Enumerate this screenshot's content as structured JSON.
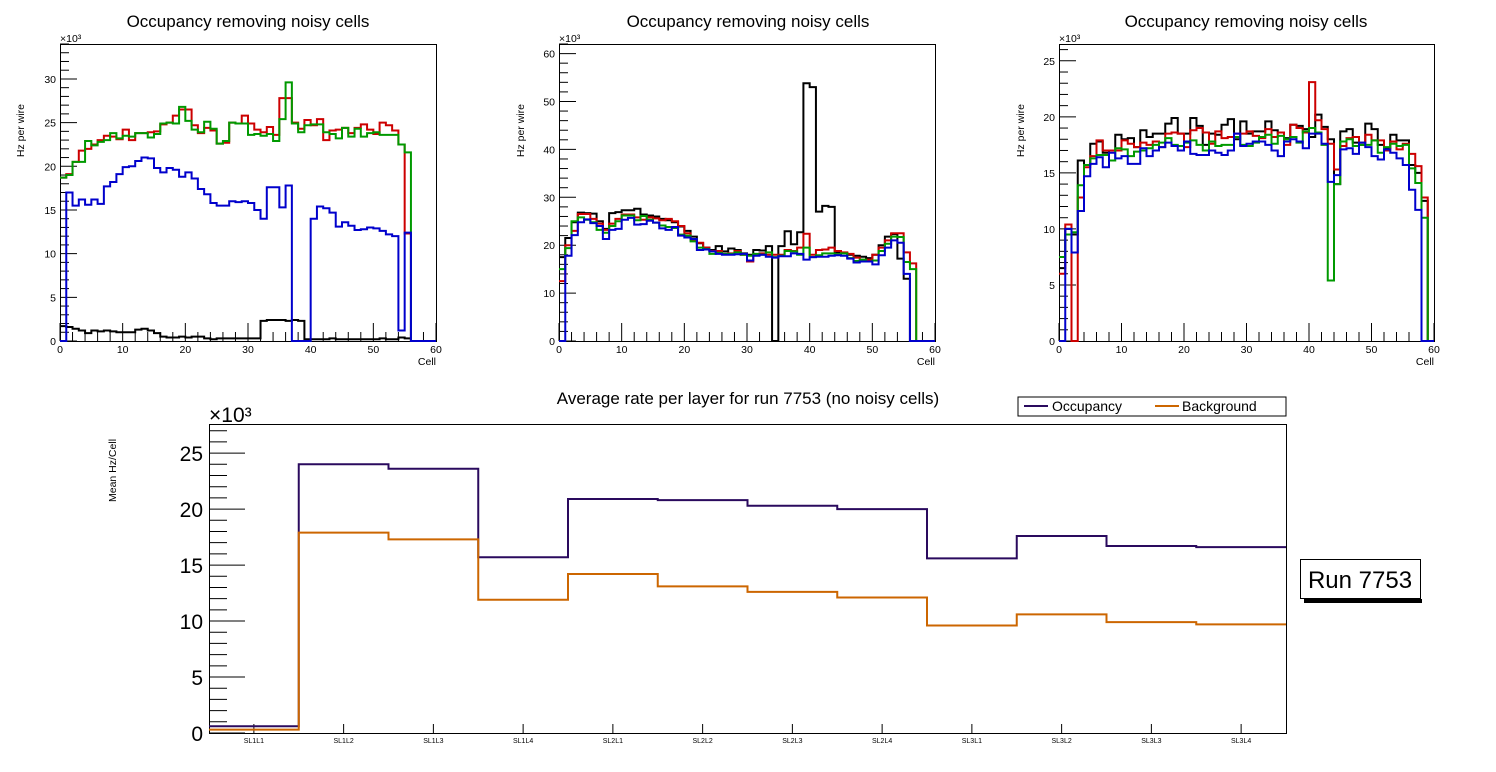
{
  "chart_data": [
    {
      "type": "line",
      "style": "step-histogram",
      "title": "Occupancy removing noisy cells",
      "xlabel": "Cell",
      "ylabel": "Hz per wire",
      "y_multiplier": "×10³",
      "xlim": [
        0,
        60
      ],
      "ylim": [
        0,
        34
      ],
      "xticks": [
        "0",
        "10",
        "20",
        "30",
        "40",
        "50",
        "60"
      ],
      "yticks": [
        "0",
        "5",
        "10",
        "15",
        "20",
        "25",
        "30"
      ],
      "ytick_values": [
        0,
        5,
        10,
        15,
        20,
        25,
        30
      ],
      "series": [
        {
          "name": "black",
          "color": "#000000",
          "values": [
            1.7,
            1.6,
            1.4,
            1.2,
            0.9,
            1.2,
            1.1,
            1.2,
            1.1,
            1.0,
            1.0,
            1.0,
            1.3,
            1.4,
            1.2,
            0.9,
            0.5,
            0.4,
            0.4,
            0.5,
            0.4,
            0.5,
            0.5,
            0.3,
            0.2,
            0.3,
            0.3,
            0.3,
            0.3,
            0.3,
            0.3,
            0.3,
            2.3,
            2.4,
            2.4,
            2.4,
            2.3,
            2.4,
            2.3,
            0.2,
            0.2,
            0.2,
            0.2,
            0.3,
            0.2,
            0.2,
            0.2,
            0.2,
            0.2,
            0.2,
            0.2,
            0.3,
            0.2,
            0.2,
            0.4,
            0.3,
            0,
            0,
            0,
            0
          ]
        },
        {
          "name": "red",
          "color": "#cc0000",
          "values": [
            18.7,
            19.1,
            20.5,
            21.8,
            22.0,
            22.5,
            23.0,
            23.5,
            23.4,
            23.1,
            24.2,
            23.0,
            23.8,
            23.8,
            23.9,
            24.0,
            24.8,
            25.0,
            25.8,
            26.5,
            26.5,
            24.7,
            23.8,
            24.4,
            24.1,
            22.6,
            22.7,
            25.0,
            24.9,
            25.8,
            24.9,
            24.2,
            23.9,
            24.5,
            23.6,
            27.8,
            27.8,
            25.0,
            24.3,
            25.3,
            24.7,
            25.4,
            23.0,
            24.1,
            24.2,
            24.4,
            23.8,
            24.4,
            24.8,
            24.2,
            23.7,
            25.0,
            24.7,
            24.1,
            22.5,
            12.3,
            0,
            0,
            0,
            0
          ]
        },
        {
          "name": "green",
          "color": "#009900",
          "values": [
            18.7,
            19.0,
            20.5,
            20.5,
            22.9,
            22.4,
            22.8,
            23.0,
            23.8,
            23.2,
            23.5,
            23.4,
            23.8,
            23.8,
            23.3,
            23.7,
            24.9,
            25.0,
            24.9,
            26.8,
            25.2,
            24.2,
            23.9,
            25.1,
            24.3,
            22.6,
            22.9,
            25.0,
            24.9,
            24.9,
            23.6,
            23.7,
            23.5,
            23.7,
            22.9,
            25.4,
            29.6,
            24.9,
            23.9,
            24.7,
            24.8,
            24.8,
            23.9,
            23.7,
            23.2,
            24.4,
            23.4,
            24.3,
            23.4,
            23.8,
            23.9,
            23.6,
            23.6,
            23.6,
            22.5,
            21.6,
            0,
            0,
            0,
            0
          ]
        },
        {
          "name": "blue",
          "color": "#0000cc",
          "values": [
            0,
            17.0,
            15.5,
            16.2,
            15.6,
            16.2,
            15.7,
            17.7,
            18.2,
            19.1,
            19.9,
            20.0,
            20.6,
            21.0,
            20.9,
            19.8,
            19.3,
            19.8,
            19.6,
            18.8,
            19.3,
            18.6,
            17.4,
            16.8,
            15.8,
            15.5,
            15.5,
            16.0,
            15.9,
            16.0,
            15.8,
            15.0,
            14.0,
            17.6,
            17.6,
            15.3,
            17.8,
            0,
            0,
            0,
            14.0,
            15.4,
            15.2,
            14.7,
            13.1,
            13.6,
            13.2,
            12.7,
            12.8,
            13.0,
            12.9,
            12.6,
            12.2,
            12.0,
            1.2,
            12.4,
            0,
            0,
            0,
            0
          ]
        }
      ]
    },
    {
      "type": "line",
      "style": "step-histogram",
      "title": "Occupancy removing noisy cells",
      "xlabel": "Cell",
      "ylabel": "Hz per wire",
      "y_multiplier": "×10³",
      "xlim": [
        0,
        60
      ],
      "ylim": [
        0,
        62
      ],
      "xticks": [
        "0",
        "10",
        "20",
        "30",
        "40",
        "50",
        "60"
      ],
      "yticks": [
        "0",
        "10",
        "20",
        "30",
        "40",
        "50",
        "60"
      ],
      "ytick_values": [
        0,
        10,
        20,
        30,
        40,
        50,
        60
      ],
      "series": [
        {
          "name": "black",
          "color": "#000000",
          "values": [
            17.5,
            21.5,
            24.8,
            26.8,
            26.7,
            26.6,
            25.0,
            23.4,
            26.7,
            26.9,
            27.3,
            27.3,
            27.6,
            26.4,
            26.2,
            26.0,
            25.5,
            25.2,
            24.8,
            23.9,
            23.0,
            21.8,
            20.4,
            19.5,
            19.0,
            19.8,
            18.7,
            19.3,
            19.0,
            18.3,
            18.0,
            19.0,
            18.9,
            19.8,
            0,
            19.8,
            22.9,
            20.2,
            22.7,
            53.8,
            53.0,
            27.0,
            28.2,
            28.0,
            18.5,
            18.4,
            18.0,
            17.8,
            17.6,
            17.3,
            18.0,
            20.0,
            21.8,
            22.3,
            17.2,
            13.0,
            0,
            0,
            0,
            0
          ]
        },
        {
          "name": "red",
          "color": "#cc0000",
          "values": [
            12.5,
            20.0,
            23.0,
            26.5,
            26.5,
            25.5,
            24.5,
            23.2,
            24.5,
            25.5,
            26.4,
            26.4,
            25.8,
            25.3,
            25.8,
            25.6,
            25.2,
            25.5,
            25.0,
            24.0,
            22.5,
            21.0,
            20.5,
            19.5,
            18.8,
            18.8,
            18.2,
            18.3,
            18.8,
            18.0,
            16.6,
            18.0,
            18.3,
            18.0,
            18.0,
            18.0,
            19.0,
            18.8,
            19.5,
            22.4,
            18.0,
            19.0,
            19.1,
            19.5,
            18.8,
            18.5,
            18.2,
            17.4,
            17.0,
            17.0,
            18.0,
            19.5,
            21.0,
            22.5,
            22.5,
            18.5,
            16.2,
            0,
            0,
            0
          ]
        },
        {
          "name": "green",
          "color": "#009900",
          "values": [
            15.0,
            19.4,
            25.0,
            25.8,
            25.3,
            24.8,
            23.2,
            22.6,
            24.0,
            25.0,
            26.2,
            26.2,
            25.2,
            26.1,
            25.3,
            24.7,
            24.1,
            23.8,
            23.6,
            22.2,
            22.0,
            20.8,
            19.5,
            19.2,
            18.2,
            18.4,
            18.2,
            18.2,
            18.5,
            18.0,
            17.8,
            18.2,
            18.0,
            18.5,
            17.5,
            17.8,
            18.8,
            18.7,
            18.0,
            19.5,
            17.5,
            17.9,
            18.3,
            18.3,
            18.1,
            18.3,
            17.3,
            16.7,
            17.0,
            16.6,
            16.8,
            18.8,
            20.3,
            21.8,
            21.7,
            16.5,
            15.0,
            0,
            0,
            0
          ]
        },
        {
          "name": "blue",
          "color": "#0000cc",
          "values": [
            0,
            17.8,
            22.1,
            24.8,
            25.4,
            24.6,
            24.0,
            21.3,
            23.2,
            23.4,
            25.3,
            25.7,
            24.3,
            24.4,
            25.1,
            24.7,
            23.5,
            23.2,
            23.8,
            22.0,
            21.6,
            21.3,
            19.0,
            19.1,
            18.7,
            18.2,
            18.0,
            18.0,
            18.1,
            18.2,
            16.8,
            17.8,
            18.0,
            17.6,
            17.4,
            17.7,
            17.7,
            18.3,
            18.2,
            17.0,
            17.5,
            17.6,
            17.6,
            17.8,
            17.9,
            17.8,
            17.2,
            16.4,
            16.6,
            16.6,
            16.0,
            17.9,
            19.5,
            21.0,
            20.5,
            14.0,
            0,
            0,
            0,
            0
          ]
        }
      ]
    },
    {
      "type": "line",
      "style": "step-histogram",
      "title": "Occupancy removing noisy cells",
      "xlabel": "Cell",
      "ylabel": "Hz per wire",
      "y_multiplier": "×10³",
      "xlim": [
        0,
        60
      ],
      "ylim": [
        0,
        26.5
      ],
      "xticks": [
        "0",
        "10",
        "20",
        "30",
        "40",
        "50",
        "60"
      ],
      "yticks": [
        "0",
        "5",
        "10",
        "15",
        "20",
        "25"
      ],
      "ytick_values": [
        0,
        5,
        10,
        15,
        20,
        25
      ],
      "series": [
        {
          "name": "black",
          "color": "#000000",
          "values": [
            6.5,
            10.0,
            9.5,
            16.1,
            15.7,
            17.6,
            17.8,
            16.8,
            17.0,
            18.4,
            18.0,
            18.1,
            17.3,
            18.8,
            18.2,
            18.5,
            18.5,
            19.4,
            19.9,
            18.5,
            18.5,
            19.9,
            19.2,
            17.5,
            18.5,
            18.4,
            19.3,
            19.8,
            18.0,
            19.6,
            18.5,
            18.7,
            18.7,
            19.6,
            18.8,
            18.6,
            18.1,
            19.3,
            19.2,
            18.9,
            18.2,
            20.2,
            19.1,
            18.0,
            14.0,
            18.7,
            18.9,
            17.7,
            17.5,
            19.4,
            18.9,
            17.5,
            17.2,
            18.4,
            17.9,
            17.9,
            15.7,
            15.0,
            12.5,
            0
          ]
        },
        {
          "name": "red",
          "color": "#cc0000",
          "values": [
            6.0,
            10.4,
            0,
            12.8,
            15.5,
            16.5,
            17.9,
            17.0,
            17.0,
            17.0,
            17.9,
            17.6,
            17.3,
            17.7,
            17.5,
            17.8,
            17.3,
            18.5,
            18.6,
            18.5,
            17.3,
            18.8,
            19.0,
            18.6,
            17.6,
            18.7,
            18.1,
            18.2,
            18.5,
            18.5,
            18.7,
            18.3,
            18.1,
            18.9,
            18.2,
            18.6,
            17.5,
            19.3,
            19.0,
            18.6,
            23.1,
            19.7,
            18.9,
            17.6,
            15.3,
            17.4,
            18.1,
            18.2,
            17.7,
            18.4,
            17.9,
            17.9,
            17.0,
            17.8,
            17.1,
            17.6,
            16.7,
            15.6,
            12.8,
            0
          ]
        },
        {
          "name": "green",
          "color": "#009900",
          "values": [
            7.5,
            9.5,
            9.7,
            13.9,
            15.7,
            16.3,
            16.6,
            16.6,
            16.1,
            17.2,
            17.1,
            16.5,
            16.9,
            17.0,
            17.2,
            17.5,
            17.7,
            18.1,
            17.5,
            17.4,
            17.7,
            17.9,
            17.5,
            17.0,
            17.8,
            17.4,
            17.5,
            17.5,
            18.2,
            17.5,
            17.4,
            17.7,
            18.2,
            18.4,
            17.6,
            18.3,
            18.0,
            18.2,
            17.7,
            18.7,
            19.0,
            18.6,
            17.5,
            5.4,
            14.0,
            17.8,
            18.0,
            17.4,
            17.5,
            17.5,
            17.9,
            16.8,
            17.3,
            17.6,
            17.4,
            17.5,
            15.4,
            14.1,
            11.0,
            0
          ]
        },
        {
          "name": "blue",
          "color": "#0000cc",
          "values": [
            0,
            10.0,
            7.9,
            11.6,
            14.7,
            15.8,
            16.4,
            15.5,
            16.8,
            16.3,
            16.5,
            15.8,
            15.8,
            17.2,
            16.5,
            17.0,
            17.3,
            17.7,
            17.4,
            17.0,
            17.8,
            16.7,
            16.6,
            16.6,
            17.0,
            16.8,
            16.6,
            17.0,
            18.5,
            17.4,
            17.6,
            17.8,
            17.8,
            17.5,
            17.0,
            16.5,
            17.8,
            18.0,
            17.8,
            17.2,
            18.5,
            18.5,
            17.6,
            14.2,
            14.8,
            17.1,
            17.2,
            16.7,
            17.7,
            17.3,
            16.5,
            16.2,
            17.1,
            16.8,
            16.3,
            15.7,
            13.5,
            11.7,
            0,
            0
          ]
        }
      ]
    },
    {
      "type": "line",
      "style": "step-histogram",
      "title": "Average rate per layer for run 7753 (no noisy cells)",
      "xlabel": "",
      "ylabel": "Mean Hz/Cell",
      "y_multiplier": "×10³",
      "categories": [
        "SL1L1",
        "SL1L2",
        "SL1L3",
        "SL1L4",
        "SL2L1",
        "SL2L2",
        "SL2L3",
        "SL2L4",
        "SL3L1",
        "SL3L2",
        "SL3L3",
        "SL3L4"
      ],
      "ylim": [
        0,
        27.6
      ],
      "yticks": [
        "0",
        "5",
        "10",
        "15",
        "20",
        "25"
      ],
      "ytick_values": [
        0,
        5,
        10,
        15,
        20,
        25
      ],
      "legend_position": "top-right",
      "series": [
        {
          "name": "Occupancy",
          "color": "#2a0a5e",
          "values": [
            0.6,
            24.0,
            23.6,
            15.7,
            20.9,
            20.8,
            20.3,
            20.0,
            15.6,
            17.6,
            16.7,
            16.6
          ]
        },
        {
          "name": "Background",
          "color": "#cc6600",
          "values": [
            0.3,
            17.9,
            17.3,
            11.9,
            14.2,
            13.1,
            12.6,
            12.1,
            9.6,
            10.6,
            9.9,
            9.7
          ]
        }
      ]
    }
  ],
  "annotation": {
    "run_label": "Run 7753"
  }
}
